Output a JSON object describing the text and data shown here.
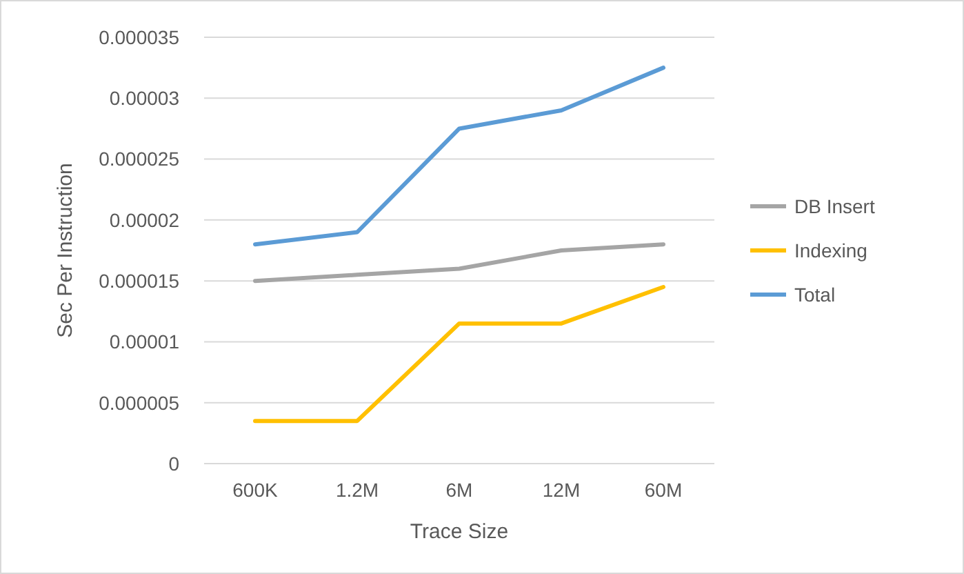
{
  "chart_data": {
    "type": "line",
    "xlabel": "Trace Size",
    "ylabel": "Sec Per Instruction",
    "categories": [
      "600K",
      "1.2M",
      "6M",
      "12M",
      "60M"
    ],
    "series": [
      {
        "name": "DB Insert",
        "color": "#a5a5a5",
        "values": [
          1.5e-05,
          1.55e-05,
          1.6e-05,
          1.75e-05,
          1.8e-05
        ]
      },
      {
        "name": "Indexing",
        "color": "#ffc000",
        "values": [
          3.5e-06,
          3.5e-06,
          1.15e-05,
          1.15e-05,
          1.45e-05
        ]
      },
      {
        "name": "Total",
        "color": "#5b9bd5",
        "values": [
          1.8e-05,
          1.9e-05,
          2.75e-05,
          2.9e-05,
          3.25e-05
        ]
      }
    ],
    "ylim": [
      0,
      3.5e-05
    ],
    "yticks": [
      0,
      {
        "value": 5e-06,
        "label": "0.000005"
      },
      {
        "value": 1e-05,
        "label": "0.00001"
      },
      {
        "value": 1.5e-05,
        "label": "0.000015"
      },
      {
        "value": 2e-05,
        "label": "0.00002"
      },
      {
        "value": 2.5e-05,
        "label": "0.000025"
      },
      {
        "value": 3e-05,
        "label": "0.00003"
      },
      {
        "value": 3.5e-05,
        "label": "0.000035"
      }
    ],
    "grid": "y",
    "legend": "right",
    "marker": "none",
    "line_style": "solid"
  }
}
